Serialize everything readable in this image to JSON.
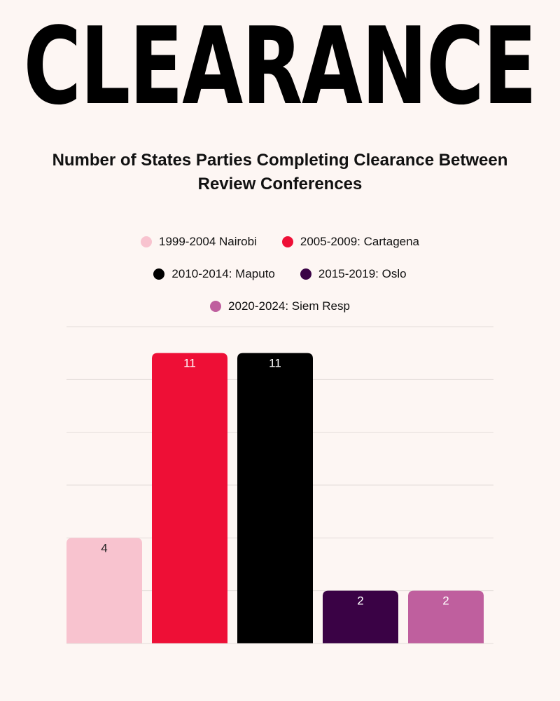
{
  "banner": {
    "text": "CLEARANCE"
  },
  "chart_data": {
    "type": "bar",
    "title": "Number of States Parties Completing Clearance Between Review Conferences",
    "categories": [
      "1999-2004 Nairobi",
      "2005-2009: Cartagena",
      "2010-2014: Maputo",
      "2015-2019: Oslo",
      "2020-2024: Siem Resp"
    ],
    "values": [
      4,
      11,
      11,
      2,
      2
    ],
    "colors": [
      "#f8c3cf",
      "#ee0f36",
      "#000000",
      "#3a0245",
      "#bf5f9e"
    ],
    "data_label_colors": [
      "#222222",
      "#ffffff",
      "#ffffff",
      "#ffffff",
      "#ffffff"
    ],
    "xlabel": "",
    "ylabel": "",
    "ylim": [
      0,
      12
    ],
    "grid": true,
    "legend_position": "top"
  }
}
